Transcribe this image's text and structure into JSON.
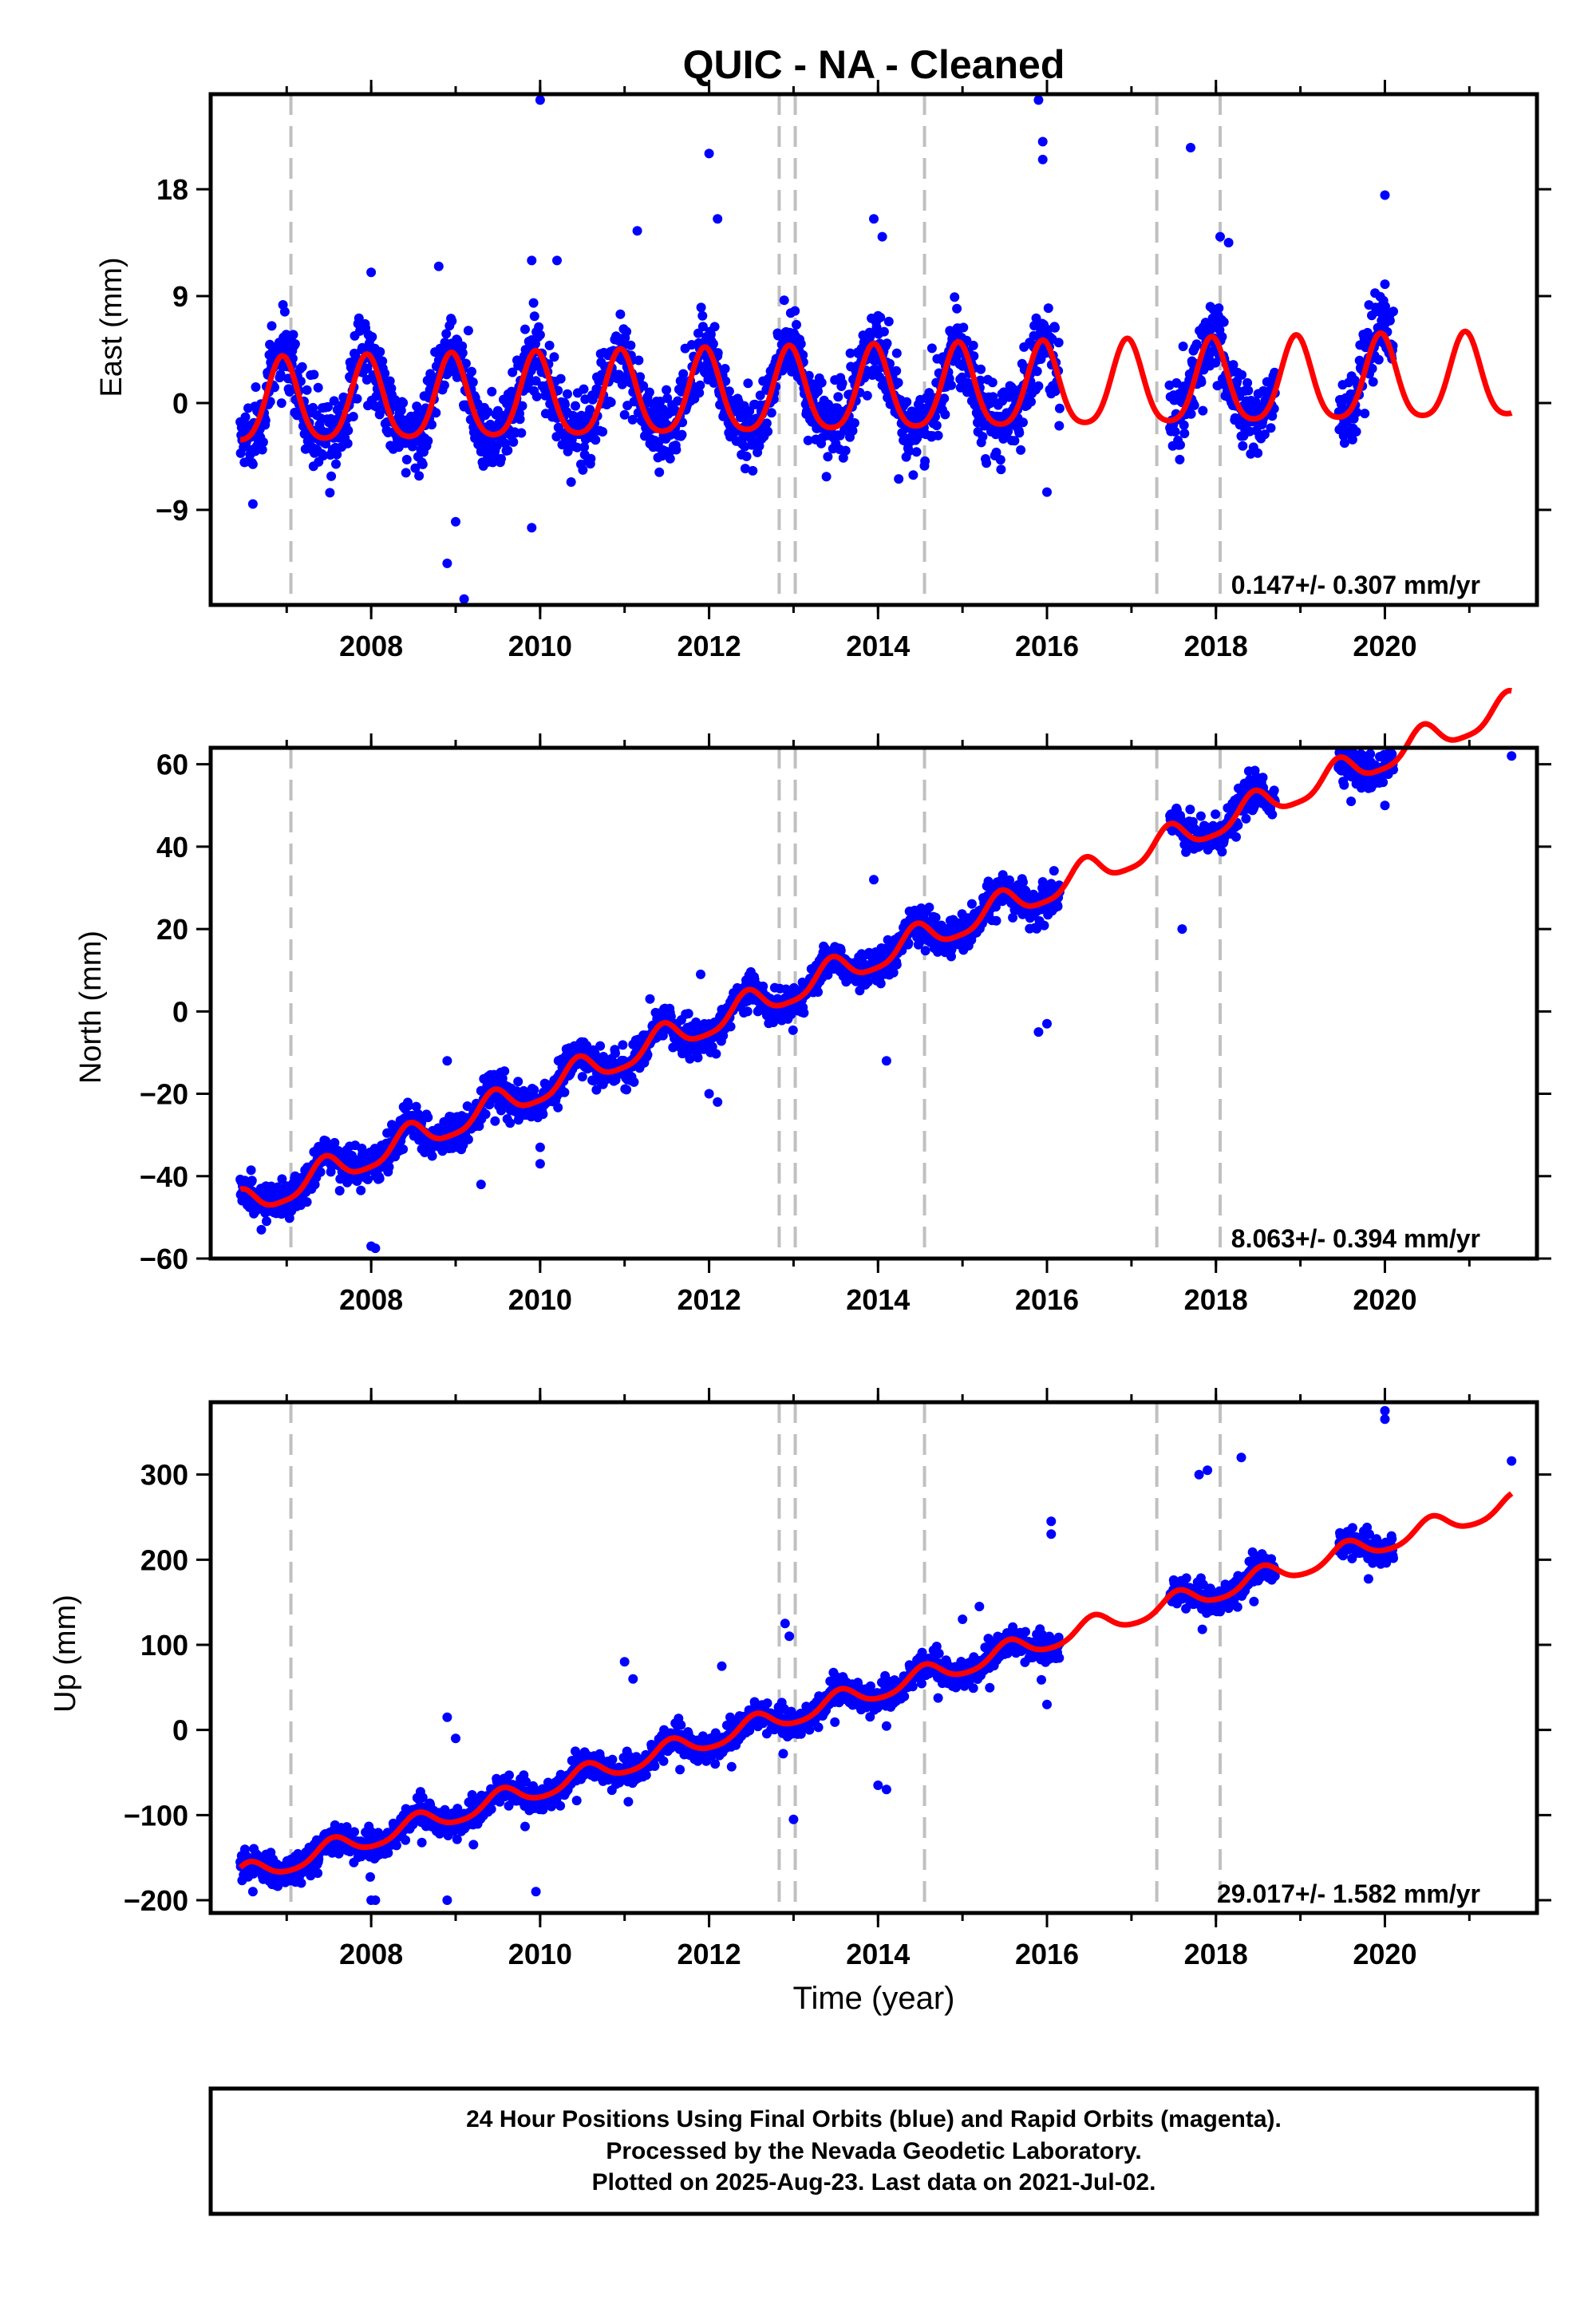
{
  "title": "QUIC  - NA - Cleaned",
  "footer": {
    "lines": [
      "24 Hour Positions Using Final Orbits (blue) and Rapid Orbits (magenta).",
      "Processed by the Nevada Geodetic Laboratory.",
      "Plotted on 2025-Aug-23. Last data on 2021-Jul-02."
    ]
  },
  "colors": {
    "data": "#0000ff",
    "model": "#ff0000",
    "events": "#c0c0c0",
    "axis": "#000000"
  },
  "chart_data": [
    {
      "type": "scatter",
      "ylabel": "East (mm)",
      "xlabel": "",
      "xlim": [
        2006.1,
        2021.8
      ],
      "ylim": [
        -17,
        26
      ],
      "xticks": [
        2008,
        2010,
        2012,
        2014,
        2016,
        2018,
        2020
      ],
      "yticks": [
        -9,
        0,
        9,
        18
      ],
      "rate": "0.147+/- 0.307 mm/yr",
      "events": [
        2007.05,
        2012.83,
        2013.02,
        2014.55,
        2017.3,
        2018.05
      ],
      "data_spans": [
        [
          2006.45,
          2016.15
        ],
        [
          2017.45,
          2018.7
        ],
        [
          2019.45,
          2020.1
        ]
      ],
      "model": {
        "offset": -0.2,
        "trend": 0.147,
        "amp": 3.5,
        "peak_phase": 0.95,
        "semi_amp": 0.6,
        "start": 2006.45,
        "end": 2021.5
      },
      "noise": 1.6,
      "outliers": [
        [
          2006.6,
          -8.5
        ],
        [
          2008.0,
          11
        ],
        [
          2008.8,
          11.5
        ],
        [
          2008.9,
          -13.5
        ],
        [
          2009.1,
          -16.5
        ],
        [
          2009.0,
          -10
        ],
        [
          2009.9,
          12
        ],
        [
          2009.9,
          -10.5
        ],
        [
          2010.0,
          25.5
        ],
        [
          2010.2,
          12
        ],
        [
          2011.15,
          14.5
        ],
        [
          2012.0,
          21
        ],
        [
          2012.1,
          15.5
        ],
        [
          2013.95,
          15.5
        ],
        [
          2014.05,
          14
        ],
        [
          2015.9,
          25.5
        ],
        [
          2015.95,
          22
        ],
        [
          2015.95,
          20.5
        ],
        [
          2016.0,
          -7.5
        ],
        [
          2017.7,
          21.5
        ],
        [
          2018.05,
          14
        ],
        [
          2018.15,
          13.5
        ],
        [
          2020.0,
          17.5
        ],
        [
          2020.0,
          10
        ]
      ]
    },
    {
      "type": "scatter",
      "ylabel": "North (mm)",
      "xlabel": "",
      "xlim": [
        2006.1,
        2021.8
      ],
      "ylim": [
        -60,
        64
      ],
      "xticks": [
        2008,
        2010,
        2012,
        2014,
        2016,
        2018,
        2020
      ],
      "yticks": [
        -60,
        -40,
        -20,
        0,
        20,
        40,
        60
      ],
      "rate": "8.063+/- 0.394 mm/yr",
      "events": [
        2007.05,
        2012.83,
        2013.02,
        2014.55,
        2017.3,
        2018.05
      ],
      "data_spans": [
        [
          2006.45,
          2016.15
        ],
        [
          2017.45,
          2018.7
        ],
        [
          2019.45,
          2020.1
        ]
      ],
      "model": {
        "offset": -47.5,
        "trend": 8.063,
        "amp": 3.5,
        "peak_phase": 0.45,
        "semi_amp": 0.8,
        "start": 2006.45,
        "end": 2021.5
      },
      "noise": 2.2,
      "outliers": [
        [
          2006.7,
          -53
        ],
        [
          2008.0,
          -57
        ],
        [
          2008.05,
          -57.5
        ],
        [
          2008.9,
          -12
        ],
        [
          2009.3,
          -42
        ],
        [
          2010.0,
          -37
        ],
        [
          2010.0,
          -33
        ],
        [
          2011.3,
          3
        ],
        [
          2011.9,
          9
        ],
        [
          2012.0,
          -20
        ],
        [
          2012.1,
          -22
        ],
        [
          2013.95,
          32
        ],
        [
          2013.8,
          13
        ],
        [
          2014.1,
          -12
        ],
        [
          2015.4,
          22
        ],
        [
          2016.0,
          30
        ],
        [
          2016.05,
          31
        ],
        [
          2015.9,
          -5
        ],
        [
          2016.0,
          -3
        ],
        [
          2017.6,
          20
        ],
        [
          2019.6,
          51
        ],
        [
          2020.0,
          50
        ],
        [
          2021.5,
          62
        ]
      ]
    },
    {
      "type": "scatter",
      "ylabel": "Up (mm)",
      "xlabel": "Time (year)",
      "xlim": [
        2006.1,
        2021.8
      ],
      "ylim": [
        -215,
        385
      ],
      "xticks": [
        2008,
        2010,
        2012,
        2014,
        2016,
        2018,
        2020
      ],
      "yticks": [
        -200,
        -100,
        0,
        100,
        200,
        300
      ],
      "rate": "29.017+/- 1.582 mm/yr",
      "events": [
        2007.05,
        2012.83,
        2013.02,
        2014.55,
        2017.3,
        2018.05
      ],
      "data_spans": [
        [
          2006.45,
          2016.15
        ],
        [
          2017.45,
          2018.7
        ],
        [
          2019.45,
          2020.1
        ]
      ],
      "model": {
        "offset": -172,
        "trend": 29.017,
        "amp": 12,
        "peak_phase": 0.55,
        "semi_amp": 2,
        "start": 2006.45,
        "end": 2021.5
      },
      "noise": 9,
      "outliers": [
        [
          2006.6,
          -190
        ],
        [
          2008.0,
          -200
        ],
        [
          2008.05,
          -200
        ],
        [
          2008.9,
          15
        ],
        [
          2008.9,
          -200
        ],
        [
          2009.0,
          -10
        ],
        [
          2009.95,
          -190
        ],
        [
          2011.0,
          80
        ],
        [
          2011.1,
          60
        ],
        [
          2012.15,
          75
        ],
        [
          2012.9,
          125
        ],
        [
          2012.95,
          110
        ],
        [
          2013.0,
          -105
        ],
        [
          2014.0,
          -65
        ],
        [
          2014.1,
          -70
        ],
        [
          2014.2,
          55
        ],
        [
          2015.0,
          130
        ],
        [
          2015.2,
          145
        ],
        [
          2016.05,
          245
        ],
        [
          2016.05,
          230
        ],
        [
          2016.0,
          30
        ],
        [
          2017.8,
          300
        ],
        [
          2017.9,
          305
        ],
        [
          2018.3,
          320
        ],
        [
          2020.0,
          375
        ],
        [
          2020.0,
          365
        ],
        [
          2019.95,
          195
        ],
        [
          2021.5,
          316
        ]
      ]
    }
  ]
}
